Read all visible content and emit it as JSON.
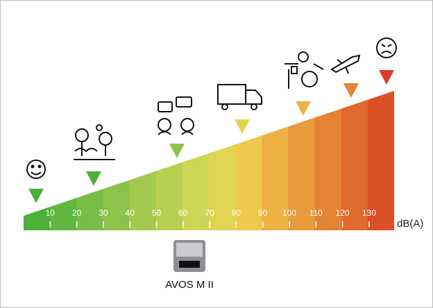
{
  "scale": {
    "ticks": [
      10,
      20,
      30,
      40,
      50,
      60,
      70,
      80,
      90,
      100,
      110,
      120,
      130
    ],
    "unit": "dB(A)"
  },
  "product": {
    "label": "AVOS M II"
  }
}
